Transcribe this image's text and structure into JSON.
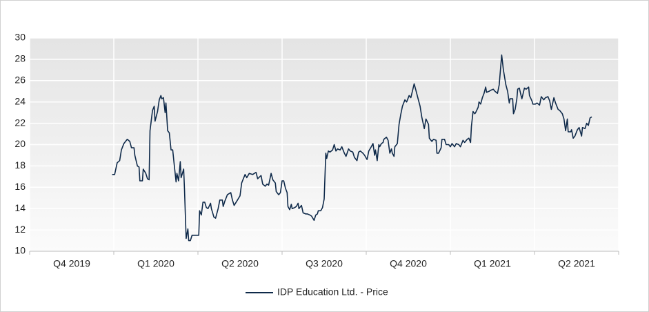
{
  "chart_data": {
    "type": "line",
    "legend": "bottom",
    "grid": true,
    "xlim": [
      0,
      7
    ],
    "xticks": [
      {
        "value": 0.5,
        "label": "Q4 2019"
      },
      {
        "value": 1.5,
        "label": "Q1 2020"
      },
      {
        "value": 2.5,
        "label": "Q2 2020"
      },
      {
        "value": 3.5,
        "label": "Q3 2020"
      },
      {
        "value": 4.5,
        "label": "Q4 2020"
      },
      {
        "value": 5.5,
        "label": "Q1 2021"
      },
      {
        "value": 6.5,
        "label": "Q2 2021"
      }
    ],
    "ylim": [
      10,
      30
    ],
    "yticks": [
      10,
      12,
      14,
      16,
      18,
      20,
      22,
      24,
      26,
      28,
      30
    ],
    "x": [
      0.98,
      1.01,
      1.04,
      1.07,
      1.09,
      1.12,
      1.16,
      1.19,
      1.21,
      1.24,
      1.25,
      1.28,
      1.3,
      1.31,
      1.34,
      1.35,
      1.38,
      1.4,
      1.42,
      1.43,
      1.46,
      1.48,
      1.49,
      1.52,
      1.54,
      1.56,
      1.57,
      1.59,
      1.61,
      1.62,
      1.64,
      1.66,
      1.68,
      1.7,
      1.72,
      1.74,
      1.75,
      1.77,
      1.79,
      1.8,
      1.83,
      1.84,
      1.86,
      1.88,
      1.89,
      1.91,
      1.93,
      1.99,
      2.01,
      2.02,
      2.04,
      2.06,
      2.08,
      2.1,
      2.12,
      2.15,
      2.16,
      2.19,
      2.21,
      2.24,
      2.26,
      2.29,
      2.3,
      2.32,
      2.35,
      2.39,
      2.41,
      2.43,
      2.47,
      2.5,
      2.52,
      2.56,
      2.58,
      2.61,
      2.65,
      2.69,
      2.71,
      2.75,
      2.77,
      2.8,
      2.82,
      2.84,
      2.87,
      2.89,
      2.92,
      2.93,
      2.96,
      2.98,
      3.0,
      3.02,
      3.04,
      3.06,
      3.07,
      3.09,
      3.11,
      3.12,
      3.15,
      3.17,
      3.19,
      3.2,
      3.23,
      3.25,
      3.28,
      3.3,
      3.33,
      3.35,
      3.38,
      3.4,
      3.42,
      3.43,
      3.46,
      3.48,
      3.5,
      3.52,
      3.53,
      3.55,
      3.57,
      3.6,
      3.62,
      3.64,
      3.66,
      3.69,
      3.71,
      3.74,
      3.76,
      3.79,
      3.81,
      3.84,
      3.86,
      3.89,
      3.91,
      3.93,
      3.96,
      3.98,
      4.01,
      4.03,
      4.06,
      4.08,
      4.1,
      4.11,
      4.13,
      4.15,
      4.16,
      4.18,
      4.2,
      4.21,
      4.24,
      4.26,
      4.28,
      4.3,
      4.31,
      4.33,
      4.34,
      4.37,
      4.39,
      4.41,
      4.43,
      4.46,
      4.48,
      4.51,
      4.53,
      4.57,
      4.59,
      4.61,
      4.64,
      4.66,
      4.69,
      4.71,
      4.74,
      4.75,
      4.78,
      4.8,
      4.83,
      4.84,
      4.86,
      4.89,
      4.9,
      4.93,
      4.95,
      4.98,
      5.0,
      5.02,
      5.05,
      5.07,
      5.1,
      5.12,
      5.15,
      5.17,
      5.2,
      5.22,
      5.24,
      5.25,
      5.27,
      5.29,
      5.3,
      5.33,
      5.34,
      5.36,
      5.38,
      5.4,
      5.42,
      5.43,
      5.46,
      5.48,
      5.51,
      5.53,
      5.56,
      5.58,
      5.61,
      5.63,
      5.66,
      5.68,
      5.7,
      5.71,
      5.74,
      5.75,
      5.77,
      5.79,
      5.8,
      5.82,
      5.84,
      5.85,
      5.88,
      5.9,
      5.93,
      5.94,
      5.97,
      5.98,
      6.01,
      6.03,
      6.06,
      6.08,
      6.11,
      6.13,
      6.16,
      6.18,
      6.2,
      6.23,
      6.25,
      6.28,
      6.3,
      6.33,
      6.35,
      6.37,
      6.39,
      6.4,
      6.43,
      6.44,
      6.46,
      6.48,
      6.51,
      6.53,
      6.56,
      6.57,
      6.6,
      6.62,
      6.64,
      6.66,
      6.68
    ],
    "series": [
      {
        "name": "IDP Education Ltd. - Price",
        "color": "#0f2a4a",
        "values": [
          17.2,
          17.2,
          18.3,
          18.5,
          19.5,
          20.1,
          20.5,
          20.3,
          19.7,
          19.7,
          19.0,
          18.0,
          17.9,
          16.6,
          16.6,
          17.7,
          17.3,
          16.8,
          16.7,
          21.3,
          23.2,
          23.6,
          22.2,
          23.1,
          24.2,
          24.6,
          24.3,
          24.4,
          23.0,
          23.9,
          21.3,
          21.1,
          19.5,
          19.5,
          18.0,
          16.5,
          17.3,
          16.6,
          18.4,
          16.9,
          17.7,
          15.8,
          11.2,
          12.1,
          11.0,
          11.0,
          11.5,
          11.5,
          11.5,
          13.8,
          13.4,
          14.6,
          14.6,
          14.1,
          14.0,
          14.5,
          14.0,
          13.2,
          13.1,
          14.0,
          14.8,
          14.8,
          14.2,
          14.7,
          15.3,
          15.5,
          14.8,
          14.3,
          14.8,
          15.2,
          16.4,
          17.2,
          16.9,
          17.3,
          17.2,
          17.4,
          16.8,
          17.1,
          16.3,
          16.1,
          16.3,
          16.2,
          17.3,
          16.7,
          16.4,
          15.6,
          15.3,
          15.5,
          16.6,
          16.6,
          15.9,
          15.5,
          14.2,
          13.9,
          14.4,
          14.0,
          14.1,
          14.2,
          14.5,
          14.0,
          14.3,
          13.6,
          13.5,
          13.5,
          13.4,
          13.3,
          12.9,
          13.4,
          13.5,
          13.8,
          13.8,
          14.1,
          14.9,
          19.2,
          18.7,
          19.4,
          19.3,
          19.5,
          20.0,
          19.4,
          19.6,
          19.5,
          19.8,
          19.2,
          18.9,
          19.6,
          19.4,
          19.3,
          18.8,
          18.5,
          19.3,
          19.4,
          19.2,
          19.0,
          18.6,
          19.4,
          19.8,
          20.1,
          19.0,
          19.5,
          18.5,
          20.0,
          19.8,
          20.1,
          20.2,
          20.5,
          20.7,
          20.4,
          19.2,
          19.6,
          19.2,
          18.9,
          19.8,
          20.1,
          21.9,
          22.8,
          23.6,
          24.2,
          24.0,
          24.6,
          24.4,
          25.7,
          25.1,
          24.5,
          23.6,
          22.6,
          21.5,
          22.4,
          21.9,
          20.6,
          20.3,
          20.5,
          20.4,
          19.2,
          19.2,
          19.7,
          20.5,
          20.5,
          20.0,
          20.0,
          19.8,
          20.1,
          19.8,
          20.1,
          20.0,
          19.8,
          20.4,
          20.2,
          20.5,
          20.6,
          20.2,
          21.7,
          23.1,
          22.9,
          23.0,
          23.5,
          24.0,
          23.8,
          24.4,
          24.8,
          25.4,
          24.9,
          25.0,
          25.1,
          25.2,
          25.0,
          24.8,
          25.6,
          28.4,
          27.0,
          25.6,
          25.0,
          23.9,
          24.3,
          24.3,
          22.9,
          23.3,
          24.3,
          25.2,
          25.3,
          24.6,
          24.3,
          25.3,
          25.2,
          25.4,
          24.6,
          24.1,
          23.8,
          23.8,
          23.9,
          23.7,
          24.5,
          24.2,
          24.4,
          24.5,
          24.1,
          23.3,
          24.4,
          23.9,
          23.3,
          23.2,
          22.9,
          22.4,
          21.3,
          22.4,
          21.2,
          21.2,
          21.4,
          20.6,
          20.8,
          21.4,
          21.6,
          20.8,
          21.6,
          21.5,
          22.0,
          21.8,
          22.5,
          22.6
        ]
      }
    ]
  }
}
